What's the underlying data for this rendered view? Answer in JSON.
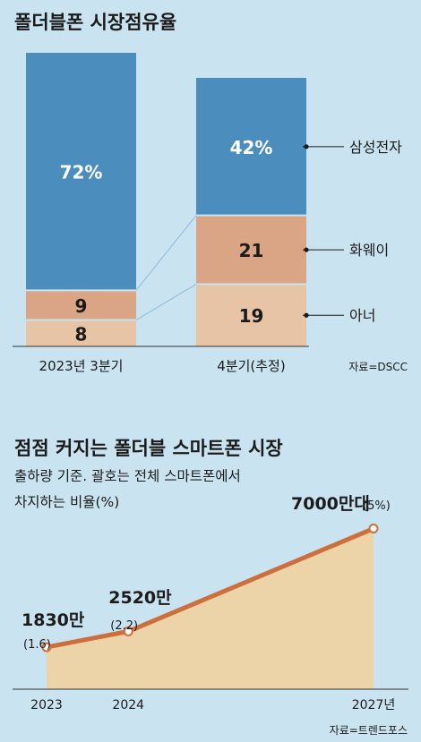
{
  "chart_data": [
    {
      "type": "bar",
      "stacked": true,
      "title": "폴더블폰 시장점유율",
      "categories": [
        "2023년 3분기",
        "4분기(추정)"
      ],
      "series": [
        {
          "name": "아너",
          "values": [
            8,
            19
          ],
          "labels": [
            "8",
            "19"
          ],
          "color": "#e8c4a6"
        },
        {
          "name": "화웨이",
          "values": [
            9,
            21
          ],
          "labels": [
            "9",
            "21"
          ],
          "color": "#d9a584"
        },
        {
          "name": "삼성전자",
          "values": [
            72,
            42
          ],
          "labels": [
            "72%",
            "42%"
          ],
          "color": "#4b8dbc"
        }
      ],
      "legend_position": "right",
      "source": "자료=DSCC",
      "colors": {
        "label_light": "#ffffff",
        "label_dark": "#1b1b1b",
        "divider": "#c9e3f1",
        "connector": "#8fbad6"
      }
    },
    {
      "type": "area",
      "title": "점점 커지는 폴더블 스마트폰 시장",
      "subtitle_lines": [
        "출하량 기준. 괄호는 전체 스마트폰에서",
        "차지하는 비율(%)"
      ],
      "x": [
        "2023",
        "2024",
        "2027년"
      ],
      "x_values": [
        2023,
        2024,
        2027
      ],
      "values": [
        1830,
        2520,
        7000
      ],
      "value_labels": [
        "1830만",
        "2520만",
        "7000만대"
      ],
      "share_labels": [
        "(1.6)",
        "(2.2)",
        "(5%)"
      ],
      "ylim": [
        0,
        7800
      ],
      "source": "자료=트렌드포스",
      "colors": {
        "area": "#edd3a8",
        "line": "#cd6f3c",
        "marker_fill": "#ffffff",
        "baseline": "#333333"
      }
    }
  ]
}
